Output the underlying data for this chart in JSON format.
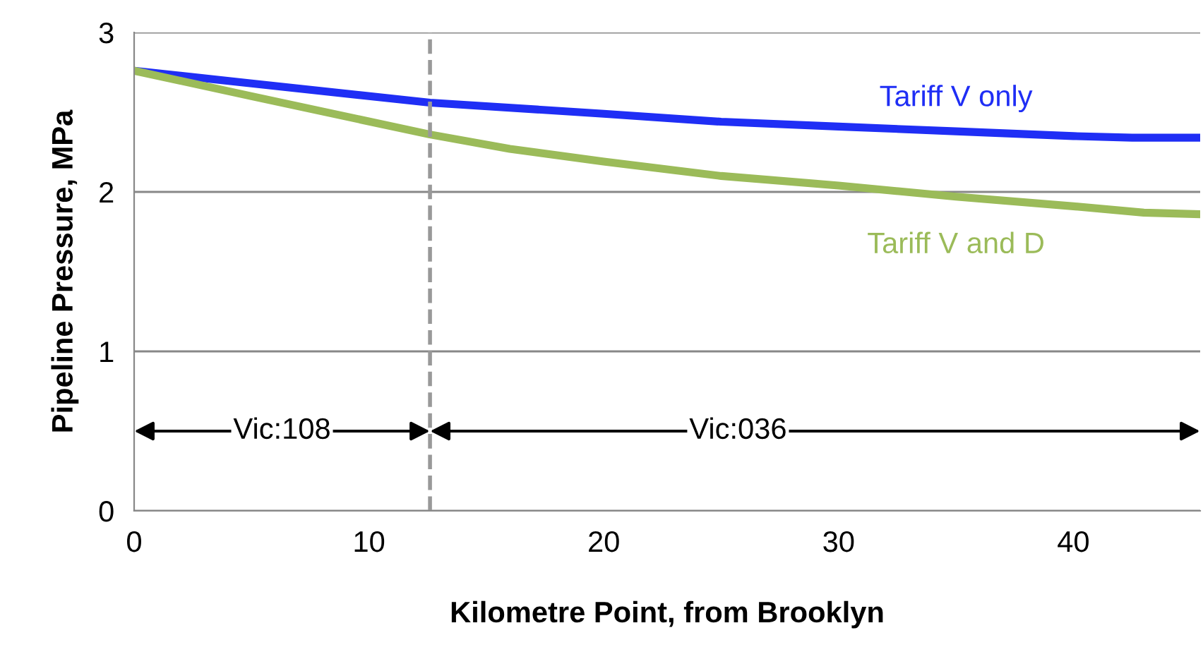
{
  "chart_data": {
    "type": "line",
    "xlabel": "Kilometre Point, from Brooklyn",
    "ylabel": "Pipeline Pressure, MPa",
    "xlim": [
      0,
      45.4
    ],
    "ylim": [
      0,
      3
    ],
    "xticks": [
      0,
      10,
      20,
      30,
      40
    ],
    "yticks": [
      0,
      1,
      2,
      3
    ],
    "grid": "y",
    "legend": false,
    "marker": "none",
    "line_style": "solid",
    "series": [
      {
        "name": "Tariff V only",
        "color": "#1f2ef5",
        "x": [
          0,
          5,
          12.6,
          20,
          25,
          30,
          35,
          40,
          42.5,
          45.4
        ],
        "values": [
          2.76,
          2.68,
          2.56,
          2.49,
          2.44,
          2.41,
          2.38,
          2.35,
          2.34,
          2.34
        ]
      },
      {
        "name": "Tariff V and D",
        "color": "#9bbb59",
        "x": [
          0,
          5,
          12.6,
          16,
          20,
          25,
          30,
          35,
          40,
          43,
          45.4
        ],
        "values": [
          2.76,
          2.6,
          2.36,
          2.27,
          2.19,
          2.1,
          2.04,
          1.97,
          1.91,
          1.87,
          1.86
        ]
      }
    ],
    "ref_lines": [
      {
        "axis": "x",
        "value": 12.6,
        "color": "#999999",
        "line_style": "dashed"
      }
    ],
    "annotations": [
      "Vic:108",
      "Vic:036"
    ]
  }
}
